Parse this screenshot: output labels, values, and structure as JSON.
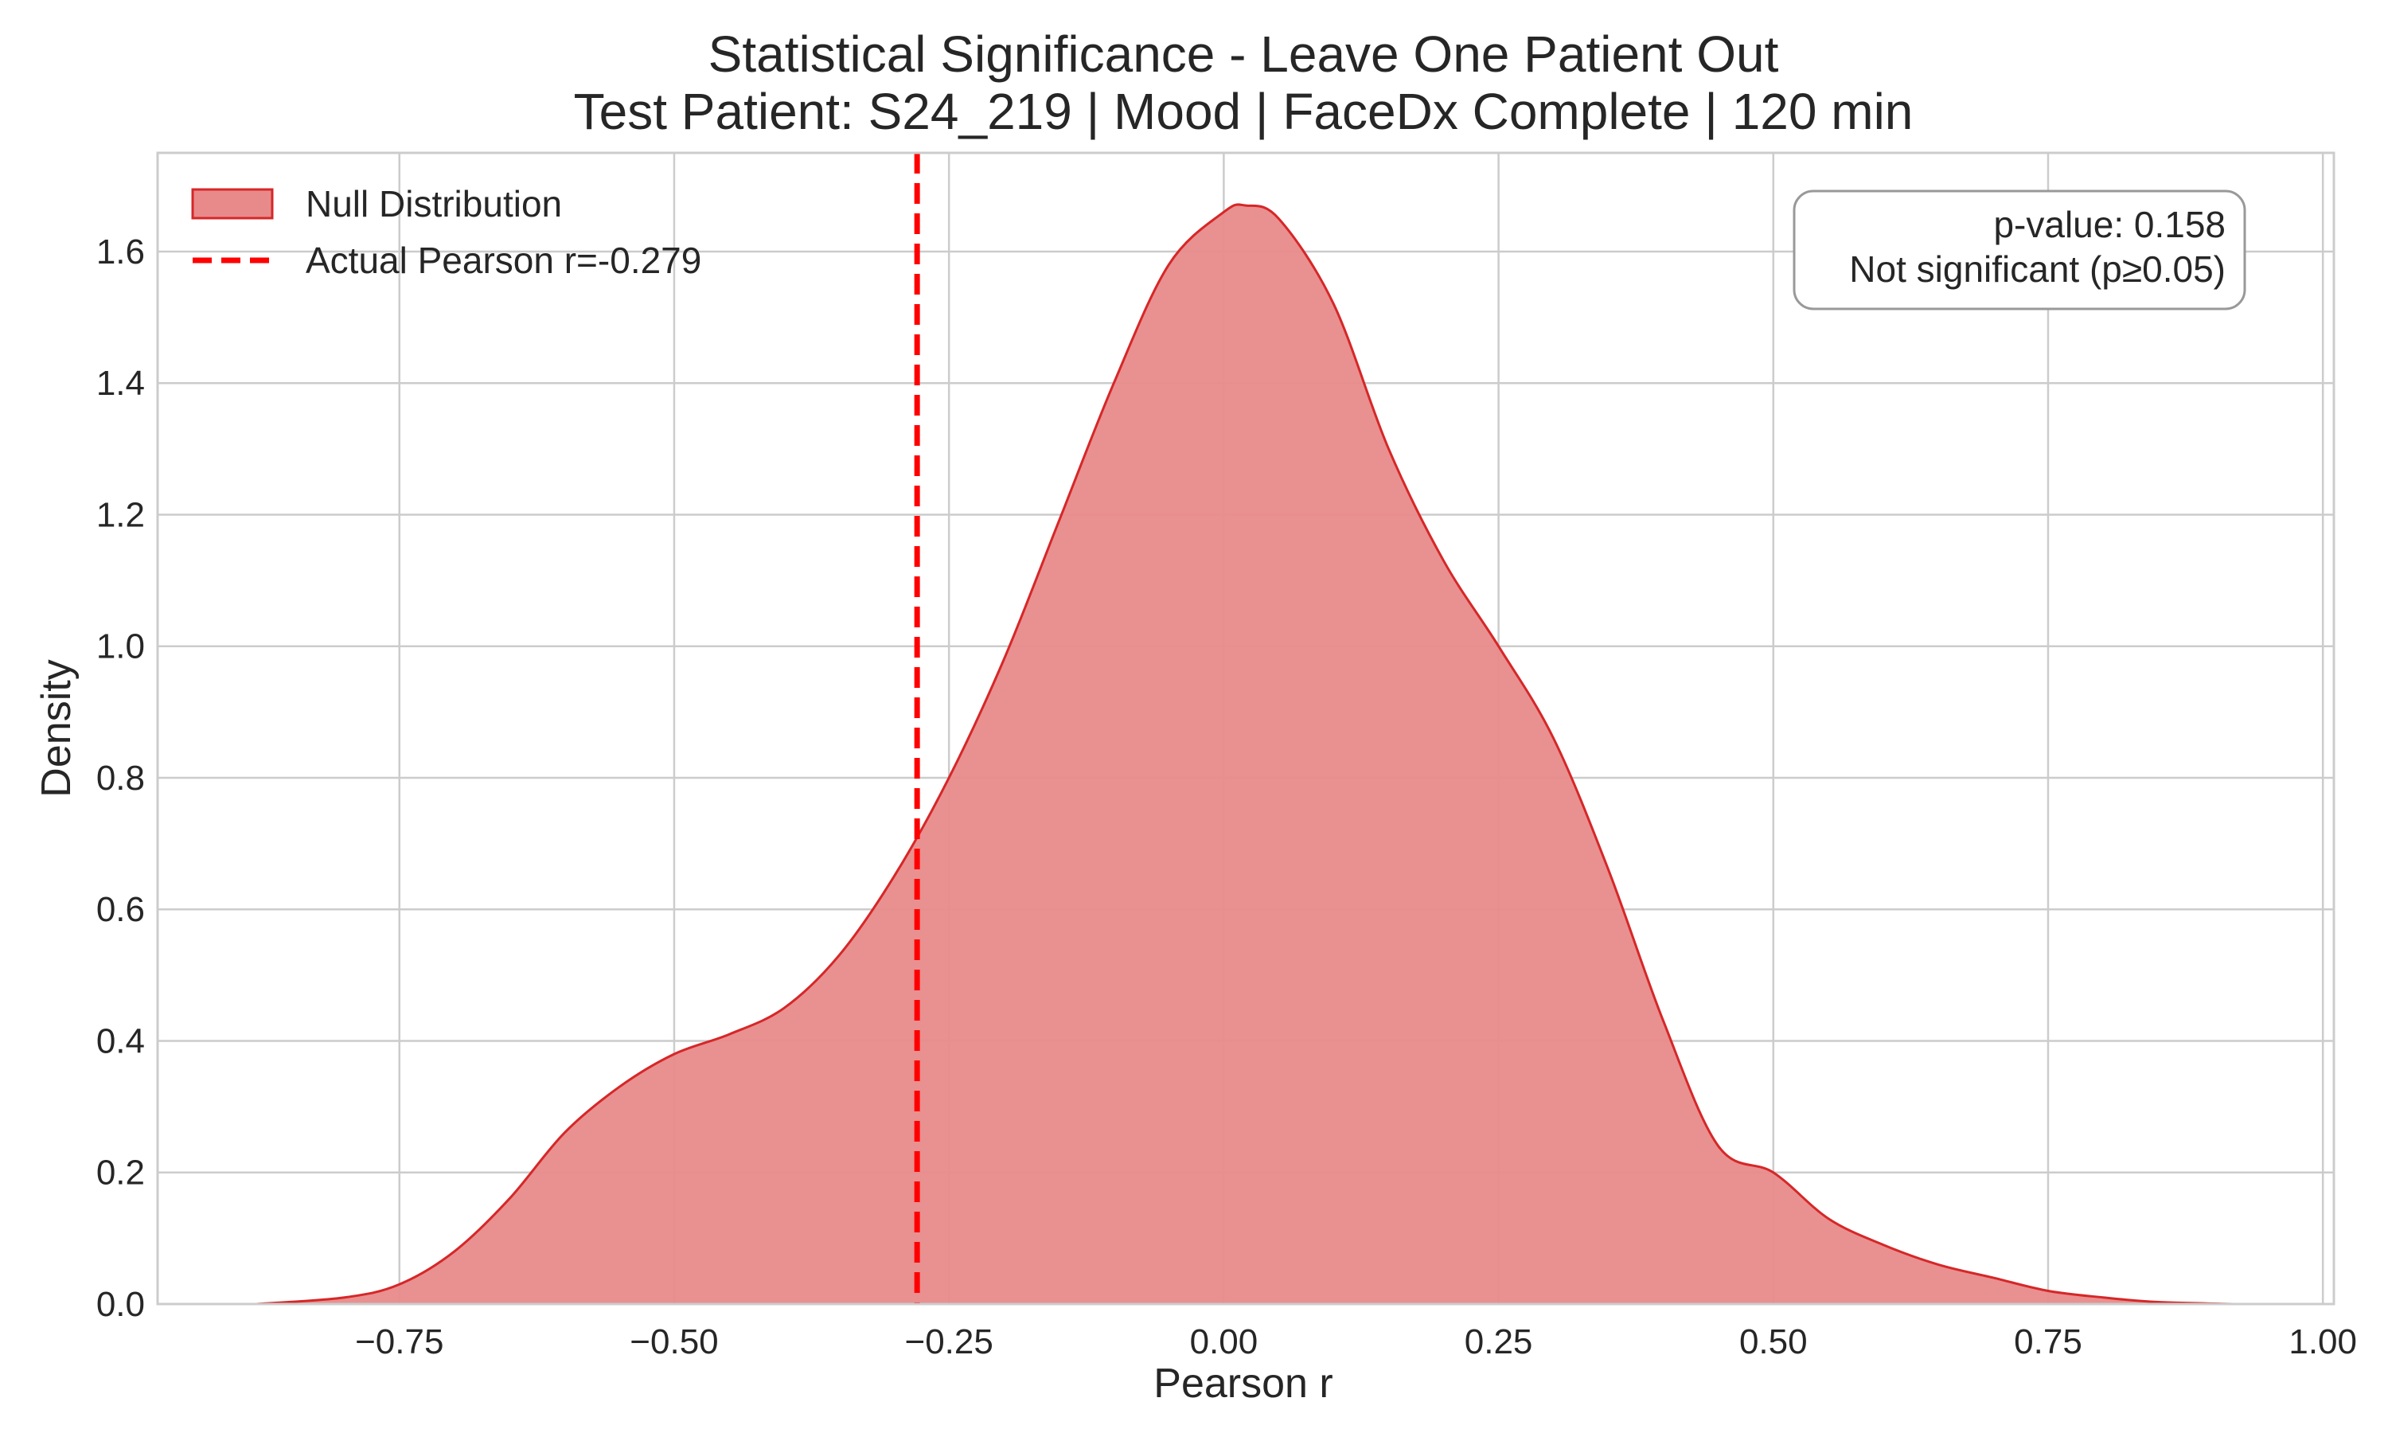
{
  "chart_data": {
    "type": "area",
    "title": "Statistical Significance - Leave One Patient Out",
    "subtitle": "Test Patient: S24_219 | Mood | FaceDx Complete | 120 min",
    "xlabel": "Pearson r",
    "ylabel": "Density",
    "xlim": [
      -0.97,
      1.01
    ],
    "ylim": [
      0.0,
      1.75
    ],
    "x_ticks": [
      -0.75,
      -0.5,
      -0.25,
      0.0,
      0.25,
      0.5,
      0.75,
      1.0
    ],
    "x_tick_labels": [
      "−0.75",
      "−0.50",
      "−0.25",
      "0.00",
      "0.25",
      "0.50",
      "0.75",
      "1.00"
    ],
    "y_ticks": [
      0.0,
      0.2,
      0.4,
      0.6,
      0.8,
      1.0,
      1.2,
      1.4,
      1.6
    ],
    "y_tick_labels": [
      "0.0",
      "0.2",
      "0.4",
      "0.6",
      "0.8",
      "1.0",
      "1.2",
      "1.4",
      "1.6"
    ],
    "grid": true,
    "legend_position": "top-left",
    "series": [
      {
        "name": "Null Distribution",
        "kind": "kde-area",
        "fill_color": "#e88a8a",
        "line_color": "#d62728",
        "x": [
          -0.88,
          -0.8,
          -0.75,
          -0.7,
          -0.65,
          -0.6,
          -0.55,
          -0.5,
          -0.45,
          -0.4,
          -0.35,
          -0.3,
          -0.25,
          -0.2,
          -0.15,
          -0.1,
          -0.05,
          0.0,
          0.02,
          0.05,
          0.1,
          0.15,
          0.2,
          0.25,
          0.3,
          0.35,
          0.4,
          0.45,
          0.5,
          0.55,
          0.6,
          0.65,
          0.7,
          0.75,
          0.8,
          0.85,
          0.92
        ],
        "y": [
          0.0,
          0.01,
          0.03,
          0.08,
          0.16,
          0.26,
          0.33,
          0.38,
          0.41,
          0.45,
          0.53,
          0.65,
          0.8,
          0.98,
          1.19,
          1.4,
          1.58,
          1.66,
          1.67,
          1.65,
          1.52,
          1.3,
          1.13,
          1.0,
          0.86,
          0.66,
          0.43,
          0.24,
          0.2,
          0.13,
          0.09,
          0.06,
          0.04,
          0.02,
          0.01,
          0.003,
          0.0
        ]
      },
      {
        "name": "Actual Pearson r=-0.279",
        "kind": "vline",
        "x": -0.279,
        "color": "#ff0000"
      }
    ],
    "annotation": {
      "line1": "p-value: 0.158",
      "line2": "Not significant (p≥0.05)",
      "position": "top-right"
    }
  }
}
